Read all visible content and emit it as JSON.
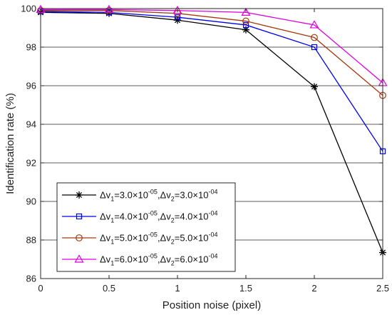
{
  "chart_data": {
    "type": "line",
    "title": "",
    "xlabel": "Position noise (pixel)",
    "ylabel": "Identification rate (%)",
    "xlim": [
      0,
      2.5
    ],
    "ylim": [
      86,
      100
    ],
    "x": [
      0,
      0.5,
      1,
      1.5,
      2,
      2.5
    ],
    "x_ticks": [
      "0",
      "0.5",
      "1",
      "1.5",
      "2",
      "2.5"
    ],
    "y_ticks": [
      "86",
      "88",
      "90",
      "92",
      "94",
      "96",
      "98",
      "100"
    ],
    "grid": "horizontal",
    "legend_position": "bottom-left",
    "series": [
      {
        "name": "Δv1=3.0×10-05,Δv2=3.0×10-04",
        "label": {
          "a": "3.0",
          "ae": "-05",
          "b": "3.0",
          "be": "-04"
        },
        "values": [
          99.8,
          99.75,
          99.4,
          98.9,
          95.95,
          87.35
        ],
        "color": "#000000",
        "marker": "asterisk"
      },
      {
        "name": "Δv1=4.0×10-05,Δv2=4.0×10-04",
        "label": {
          "a": "4.0",
          "ae": "-05",
          "b": "4.0",
          "be": "-04"
        },
        "values": [
          99.85,
          99.8,
          99.55,
          99.15,
          98.0,
          92.6
        ],
        "color": "#0000ee",
        "marker": "square"
      },
      {
        "name": "Δv1=5.0×10-05,Δv2=5.0×10-04",
        "label": {
          "a": "5.0",
          "ae": "-05",
          "b": "5.0",
          "be": "-04"
        },
        "values": [
          99.9,
          99.9,
          99.75,
          99.35,
          98.5,
          95.5
        ],
        "color": "#a33a10",
        "marker": "circle"
      },
      {
        "name": "Δv1=6.0×10-05,Δv2=6.0×10-04",
        "label": {
          "a": "6.0",
          "ae": "-05",
          "b": "6.0",
          "be": "-04"
        },
        "values": [
          99.95,
          99.95,
          99.9,
          99.8,
          99.15,
          96.15
        ],
        "color": "#dd00dd",
        "marker": "triangle"
      }
    ]
  }
}
